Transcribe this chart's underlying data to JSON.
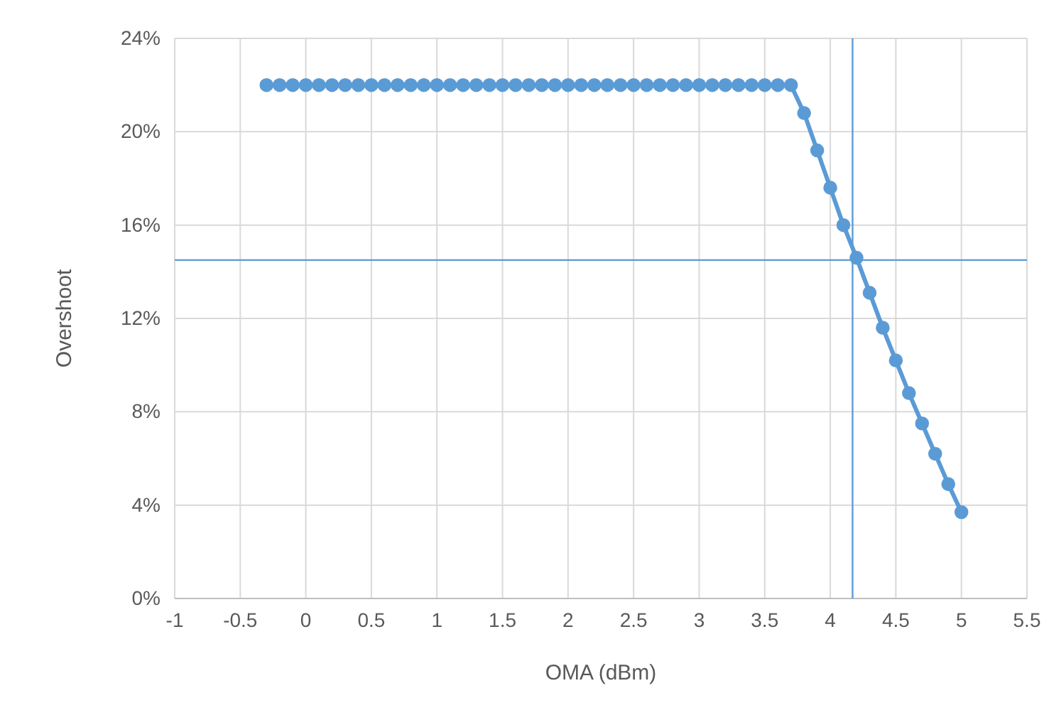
{
  "chart_data": {
    "type": "line",
    "xlabel": "OMA (dBm)",
    "ylabel": "Overshoot",
    "x": [
      -0.3,
      -0.2,
      -0.1,
      0,
      0.1,
      0.2,
      0.3,
      0.4,
      0.5,
      0.6,
      0.7,
      0.8,
      0.9,
      1,
      1.1,
      1.2,
      1.3,
      1.4,
      1.5,
      1.6,
      1.7,
      1.8,
      1.9,
      2,
      2.1,
      2.2,
      2.3,
      2.4,
      2.5,
      2.6,
      2.7,
      2.8,
      2.9,
      3,
      3.1,
      3.2,
      3.3,
      3.4,
      3.5,
      3.6,
      3.7,
      3.8,
      3.9,
      4,
      4.1,
      4.2,
      4.3,
      4.4,
      4.5,
      4.6,
      4.7,
      4.8,
      4.9,
      5
    ],
    "series": [
      {
        "color": "#5b9bd5",
        "values": [
          22,
          22,
          22,
          22,
          22,
          22,
          22,
          22,
          22,
          22,
          22,
          22,
          22,
          22,
          22,
          22,
          22,
          22,
          22,
          22,
          22,
          22,
          22,
          22,
          22,
          22,
          22,
          22,
          22,
          22,
          22,
          22,
          22,
          22,
          22,
          22,
          22,
          22,
          22,
          22,
          22,
          20.8,
          19.2,
          17.6,
          16.0,
          14.6,
          13.1,
          11.6,
          10.2,
          8.8,
          7.5,
          6.2,
          4.9,
          3.7
        ]
      }
    ],
    "xlim": [
      -1,
      5.5
    ],
    "xticks": [
      -1,
      -0.5,
      0,
      0.5,
      1,
      1.5,
      2,
      2.5,
      3,
      3.5,
      4,
      4.5,
      5,
      5.5
    ],
    "ylim": [
      0,
      24
    ],
    "yticks": [
      {
        "value": 0,
        "label": "0%"
      },
      {
        "value": 4,
        "label": "4%"
      },
      {
        "value": 8,
        "label": "8%"
      },
      {
        "value": 12,
        "label": "12%"
      },
      {
        "value": 16,
        "label": "16%"
      },
      {
        "value": 20,
        "label": "20%"
      },
      {
        "value": 24,
        "label": "24%"
      }
    ],
    "ref_lines": [
      {
        "axis": "y",
        "value": 14.5,
        "color": "#5b9bd5"
      },
      {
        "axis": "x",
        "value": 4.17,
        "color": "#5b9bd5"
      }
    ],
    "grid": true,
    "marker": "circle",
    "line_style": "solid"
  }
}
